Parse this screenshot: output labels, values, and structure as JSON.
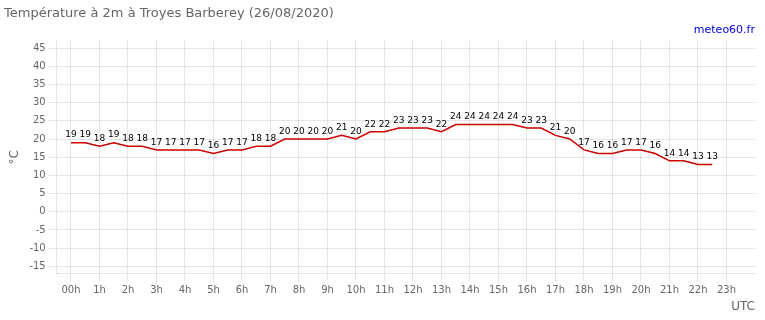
{
  "chart_data": {
    "type": "line",
    "title": "Température à 2m à Troyes Barberey (26/08/2020)",
    "xlabel": "UTC",
    "ylabel": "°C",
    "annotations": [
      {
        "text": "meteo60.fr",
        "color": "#0000dd"
      }
    ],
    "x": [
      0,
      0.5,
      1,
      1.5,
      2,
      2.5,
      3,
      3.5,
      4,
      4.5,
      5,
      5.5,
      6,
      6.5,
      7,
      7.5,
      8,
      8.5,
      9,
      9.5,
      10,
      10.5,
      11,
      11.5,
      12,
      12.5,
      13,
      13.5,
      14,
      14.5,
      15,
      15.5,
      16,
      16.5,
      17,
      17.5,
      18,
      18.5,
      19,
      19.5,
      20,
      20.5,
      21,
      21.5,
      22,
      22.5
    ],
    "values": [
      19,
      19,
      18,
      19,
      18,
      18,
      17,
      17,
      17,
      17,
      16,
      17,
      17,
      18,
      18,
      20,
      20,
      20,
      20,
      21,
      20,
      22,
      22,
      23,
      23,
      23,
      22,
      24,
      24,
      24,
      24,
      24,
      23,
      23,
      21,
      20,
      17,
      16,
      16,
      17,
      17,
      16,
      14,
      14,
      13,
      13
    ],
    "color": "#cc0000",
    "xlim": [
      -0.5,
      24
    ],
    "xticks": [
      {
        "value": 0,
        "label": "00h"
      },
      {
        "value": 1,
        "label": "1h"
      },
      {
        "value": 2,
        "label": "2h"
      },
      {
        "value": 3,
        "label": "3h"
      },
      {
        "value": 4,
        "label": "4h"
      },
      {
        "value": 5,
        "label": "5h"
      },
      {
        "value": 6,
        "label": "6h"
      },
      {
        "value": 7,
        "label": "7h"
      },
      {
        "value": 8,
        "label": "8h"
      },
      {
        "value": 9,
        "label": "9h"
      },
      {
        "value": 10,
        "label": "10h"
      },
      {
        "value": 11,
        "label": "11h"
      },
      {
        "value": 12,
        "label": "12h"
      },
      {
        "value": 13,
        "label": "13h"
      },
      {
        "value": 14,
        "label": "14h"
      },
      {
        "value": 15,
        "label": "15h"
      },
      {
        "value": 16,
        "label": "16h"
      },
      {
        "value": 17,
        "label": "17h"
      },
      {
        "value": 18,
        "label": "18h"
      },
      {
        "value": 19,
        "label": "19h"
      },
      {
        "value": 20,
        "label": "20h"
      },
      {
        "value": 21,
        "label": "21h"
      },
      {
        "value": 22,
        "label": "22h"
      },
      {
        "value": 23,
        "label": "23h"
      }
    ],
    "ylim": [
      -17,
      47
    ],
    "yticks": [
      -15,
      -10,
      -5,
      0,
      5,
      10,
      15,
      20,
      25,
      30,
      35,
      40,
      45
    ],
    "grid": true,
    "data_labels": true
  }
}
